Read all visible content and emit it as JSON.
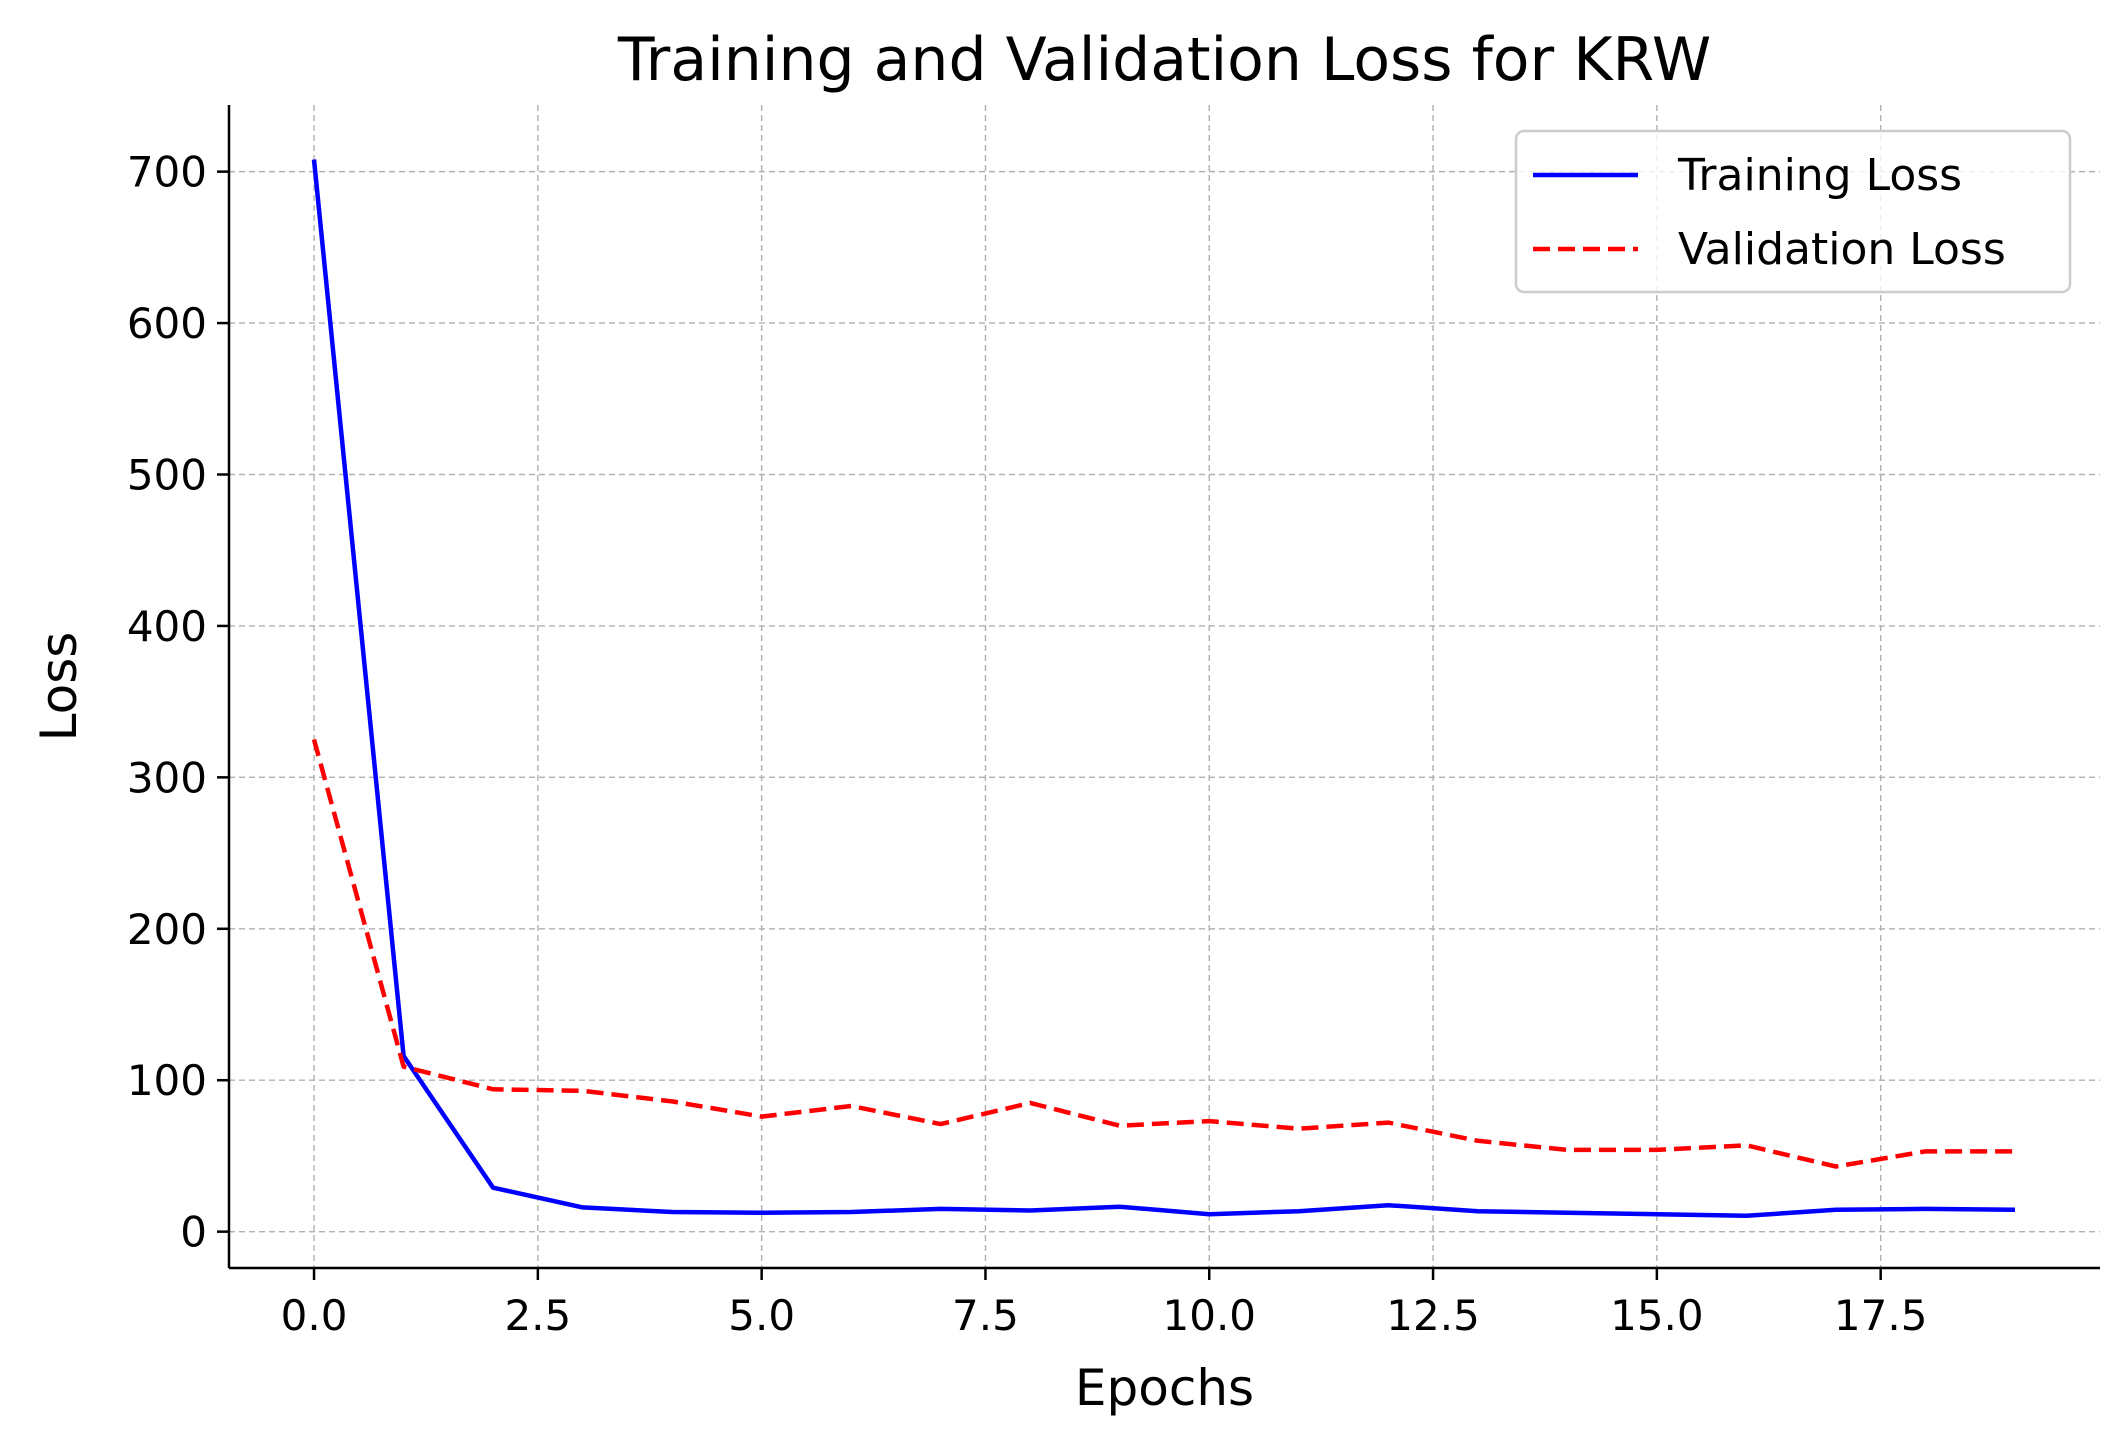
{
  "chart_data": {
    "type": "line",
    "title": "Training and Validation Loss for KRW",
    "xlabel": "Epochs",
    "ylabel": "Loss",
    "xlim": [
      -0.95,
      19.95
    ],
    "ylim": [
      -24,
      744
    ],
    "x_ticks": [
      0.0,
      2.5,
      5.0,
      7.5,
      10.0,
      12.5,
      15.0,
      17.5
    ],
    "x_tick_labels": [
      "0.0",
      "2.5",
      "5.0",
      "7.5",
      "10.0",
      "12.5",
      "15.0",
      "17.5"
    ],
    "y_ticks": [
      0,
      100,
      200,
      300,
      400,
      500,
      600,
      700
    ],
    "y_tick_labels": [
      "0",
      "100",
      "200",
      "300",
      "400",
      "500",
      "600",
      "700"
    ],
    "grid": true,
    "legend_position": "top-right",
    "x": [
      0,
      1,
      2,
      3,
      4,
      5,
      6,
      7,
      8,
      9,
      10,
      11,
      12,
      13,
      14,
      15,
      16,
      17,
      18,
      19
    ],
    "series": [
      {
        "name": "Training Loss",
        "color": "#0000ff",
        "style": "solid",
        "values": [
          708,
          116,
          29,
          16,
          13,
          12.5,
          13,
          15,
          14,
          16.5,
          11.5,
          13.5,
          17.5,
          13.5,
          12.5,
          11.5,
          10.5,
          14.5,
          15,
          14.5
        ]
      },
      {
        "name": "Validation Loss",
        "color": "#ff0000",
        "style": "dashed",
        "values": [
          325,
          109,
          94,
          93,
          86,
          76,
          83,
          71,
          85,
          70,
          73,
          68,
          72,
          60,
          54,
          54,
          57,
          43,
          53,
          53
        ]
      }
    ]
  }
}
